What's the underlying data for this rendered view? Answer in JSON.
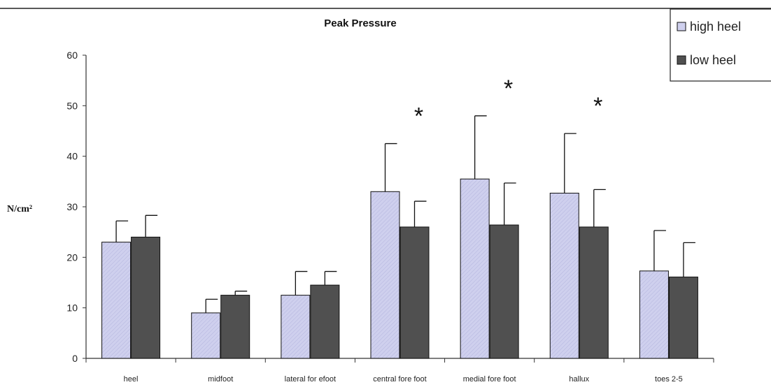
{
  "chart_data": {
    "type": "bar",
    "title": "Peak Pressure",
    "ylabel": "N/cm²",
    "xlabel": "",
    "ylim": [
      0,
      60
    ],
    "yticks": [
      "0",
      "10",
      "20",
      "30",
      "40",
      "50",
      "60"
    ],
    "categories": [
      "heel",
      "midfoot",
      "lateral for efoot",
      "central fore foot",
      "medial fore foot",
      "hallux",
      "toes 2-5"
    ],
    "series": [
      {
        "name": "high heel",
        "color": "#cfd0ee",
        "values": [
          23,
          9,
          12.5,
          33,
          35.5,
          32.7,
          17.3
        ],
        "errors": [
          4.2,
          2.7,
          4.7,
          9.5,
          12.5,
          11.8,
          8
        ]
      },
      {
        "name": "low heel",
        "color": "#505050",
        "values": [
          24,
          12.5,
          14.5,
          26,
          26.4,
          26,
          16.1
        ],
        "errors": [
          4.3,
          0.8,
          2.7,
          5.1,
          8.3,
          7.4,
          6.8
        ]
      }
    ],
    "significance_marker": "*",
    "significant_categories": [
      "central fore foot",
      "medial fore foot",
      "hallux"
    ],
    "legend_position": "top-right",
    "grid": false
  }
}
